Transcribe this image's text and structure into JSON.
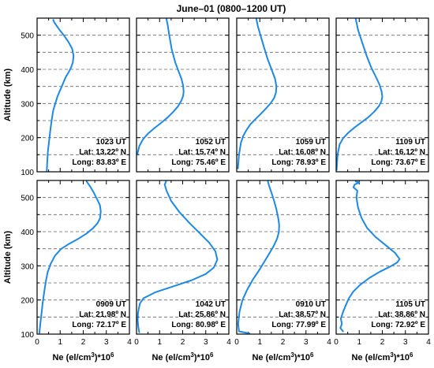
{
  "title": "June–01 (0800–1200 UT)",
  "y_label": "Altitude (km)",
  "x_label_pre": "Ne (el/cm",
  "x_label_sup": "3",
  "x_label_post": ")*10",
  "x_label_sup2": "6",
  "colors": {
    "line": "#1e88e5",
    "grid": "#666666",
    "axis": "#000000"
  },
  "chart_data": [
    {
      "type": "line",
      "panel": "top-1",
      "annotations": [
        "1023 UT",
        "Lat: 13.22º N",
        "Long: 83.83º E"
      ],
      "xlim": [
        0,
        4
      ],
      "ylim": [
        100,
        550
      ],
      "x": [
        0.42,
        0.44,
        0.47,
        0.52,
        0.57,
        0.63,
        0.7,
        0.79,
        0.88,
        0.97,
        1.07,
        1.16,
        1.26,
        1.37,
        1.47,
        1.55,
        1.58,
        1.52,
        1.36,
        1.16,
        0.98,
        0.85,
        0.75,
        0.7
      ],
      "y": [
        103,
        130,
        160,
        190,
        220,
        250,
        280,
        300,
        320,
        335,
        350,
        365,
        380,
        392,
        405,
        420,
        440,
        460,
        480,
        500,
        515,
        527,
        537,
        545
      ]
    },
    {
      "type": "line",
      "panel": "top-2",
      "annotations": [
        "1052 UT",
        "Lat: 15.74º N",
        "Long: 75.46º E"
      ],
      "xlim": [
        0,
        4
      ],
      "ylim": [
        100,
        550
      ],
      "x": [
        0.03,
        0.12,
        0.28,
        0.5,
        0.78,
        1.08,
        1.36,
        1.6,
        1.8,
        1.94,
        2.02,
        2.04,
        2.02,
        1.95,
        1.82,
        1.68,
        1.52,
        1.42,
        1.35,
        1.3
      ],
      "y": [
        150,
        175,
        195,
        212,
        228,
        244,
        260,
        276,
        292,
        308,
        322,
        335,
        352,
        372,
        395,
        420,
        460,
        500,
        530,
        547
      ]
    },
    {
      "type": "line",
      "panel": "top-3",
      "annotations": [
        "1059 UT",
        "Lat: 16.08º N",
        "Long: 78.93º E"
      ],
      "xlim": [
        0,
        4
      ],
      "ylim": [
        100,
        550
      ],
      "x": [
        0.05,
        0.1,
        0.18,
        0.28,
        0.42,
        0.58,
        0.78,
        1.02,
        1.26,
        1.46,
        1.62,
        1.7,
        1.72,
        1.66,
        1.52,
        1.35,
        1.18,
        1.03,
        0.92,
        0.85
      ],
      "y": [
        110,
        150,
        185,
        205,
        222,
        238,
        252,
        268,
        285,
        300,
        316,
        332,
        350,
        372,
        398,
        428,
        465,
        500,
        525,
        547
      ]
    },
    {
      "type": "line",
      "panel": "top-4",
      "annotations": [
        "1109 UT",
        "Lat: 16.12º N",
        "Long: 73.67º E"
      ],
      "xlim": [
        0,
        4
      ],
      "ylim": [
        100,
        550
      ],
      "x": [
        0.02,
        0.06,
        0.15,
        0.3,
        0.52,
        0.8,
        1.1,
        1.4,
        1.65,
        1.85,
        1.96,
        2.0,
        1.97,
        1.88,
        1.72,
        1.52,
        1.32,
        1.12,
        0.95,
        0.85
      ],
      "y": [
        105,
        150,
        180,
        198,
        214,
        230,
        245,
        260,
        276,
        292,
        306,
        320,
        335,
        355,
        378,
        405,
        440,
        480,
        515,
        547
      ]
    },
    {
      "type": "line",
      "panel": "bottom-1",
      "annotations": [
        "0909 UT",
        "Lat: 21.98º N",
        "Long: 72.17º E"
      ],
      "xlim": [
        0,
        4
      ],
      "ylim": [
        100,
        550
      ],
      "x": [
        0.1,
        0.14,
        0.19,
        0.24,
        0.3,
        0.37,
        0.45,
        0.58,
        0.78,
        1.05,
        1.4,
        1.8,
        2.15,
        2.42,
        2.62,
        2.73,
        2.76,
        2.72,
        2.6,
        2.45,
        2.3,
        2.15
      ],
      "y": [
        103,
        130,
        160,
        190,
        220,
        250,
        280,
        305,
        330,
        350,
        365,
        380,
        395,
        410,
        425,
        440,
        460,
        478,
        495,
        515,
        532,
        547
      ]
    },
    {
      "type": "line",
      "panel": "bottom-2",
      "annotations": [
        "1042 UT",
        "Lat: 25.86º N",
        "Long: 80.98º E"
      ],
      "xlim": [
        0,
        4
      ],
      "ylim": [
        100,
        550
      ],
      "x": [
        0.12,
        0.08,
        0.05,
        0.06,
        0.1,
        0.15,
        0.3,
        0.8,
        1.6,
        2.4,
        3.0,
        3.35,
        3.5,
        3.42,
        3.15,
        2.75,
        2.3,
        1.85,
        1.5,
        1.3,
        1.22,
        1.28
      ],
      "y": [
        105,
        120,
        140,
        160,
        175,
        190,
        205,
        222,
        240,
        258,
        276,
        295,
        318,
        342,
        368,
        395,
        425,
        458,
        490,
        520,
        538,
        547
      ]
    },
    {
      "type": "line",
      "panel": "bottom-3",
      "annotations": [
        "0910 UT",
        "Lat: 38.57º N",
        "Long: 77.99º E"
      ],
      "xlim": [
        0,
        4
      ],
      "ylim": [
        100,
        550
      ],
      "x": [
        0.55,
        0.1,
        0.06,
        0.12,
        0.25,
        0.45,
        0.7,
        0.95,
        1.18,
        1.4,
        1.6,
        1.75,
        1.83,
        1.84,
        1.8,
        1.72,
        1.62,
        1.5,
        1.4,
        1.35
      ],
      "y": [
        102,
        108,
        130,
        165,
        200,
        230,
        260,
        285,
        310,
        335,
        358,
        380,
        400,
        420,
        440,
        465,
        490,
        515,
        535,
        547
      ]
    },
    {
      "type": "line",
      "panel": "bottom-4",
      "annotations": [
        "1105 UT",
        "Lat: 38.86º N",
        "Long: 72.92º E"
      ],
      "xlim": [
        0,
        4
      ],
      "ylim": [
        100,
        550
      ],
      "x": [
        0.3,
        0.18,
        0.25,
        0.2,
        0.3,
        0.42,
        0.55,
        0.75,
        1.05,
        1.45,
        1.9,
        2.35,
        2.65,
        2.75,
        2.55,
        2.15,
        1.7,
        1.35,
        1.1,
        0.95,
        0.88,
        0.92,
        0.75,
        0.8,
        1.0,
        0.85
      ],
      "y": [
        108,
        118,
        130,
        145,
        165,
        185,
        205,
        225,
        245,
        265,
        283,
        298,
        310,
        320,
        338,
        360,
        385,
        410,
        440,
        470,
        500,
        520,
        530,
        538,
        544,
        547
      ]
    }
  ]
}
